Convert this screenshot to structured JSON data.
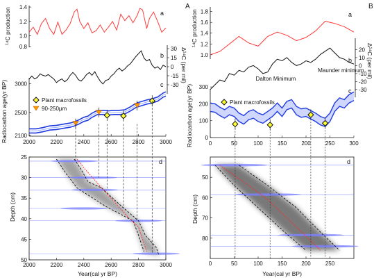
{
  "panels": {
    "A": "A",
    "B": "B"
  },
  "chart_data": [
    {
      "id": "A-top",
      "type": "line",
      "xlim": [
        2000,
        3000
      ],
      "xticks": [
        2000,
        2200,
        2400,
        2600,
        2800,
        3000
      ],
      "subplots": {
        "a": {
          "label": "a",
          "ylabel": "¹⁴C production",
          "ylim": [
            0.85,
            1.42
          ],
          "yticks": [
            "0.8",
            "1.0",
            "1.2",
            "1.4"
          ],
          "ytick_values": [
            0.8,
            1.0,
            1.2,
            1.4
          ],
          "series": [
            {
              "color": "#ff3b3b",
              "x": [
                2000,
                2030,
                2060,
                2090,
                2120,
                2150,
                2180,
                2210,
                2240,
                2270,
                2300,
                2330,
                2350,
                2370,
                2400,
                2430,
                2460,
                2490,
                2520,
                2550,
                2580,
                2610,
                2640,
                2670,
                2700,
                2730,
                2760,
                2790,
                2810,
                2830,
                2860,
                2880,
                2910,
                2940,
                2970,
                3000
              ],
              "y": [
                1.05,
                1.12,
                1.02,
                1.17,
                1.24,
                1.1,
                1.02,
                1.19,
                1.02,
                1.08,
                1.17,
                1.33,
                1.37,
                1.2,
                1.1,
                1.18,
                1.04,
                1.07,
                1.15,
                1.05,
                1.12,
                1.2,
                1.08,
                1.3,
                1.21,
                1.28,
                1.18,
                1.28,
                1.38,
                1.36,
                1.1,
                1.24,
                1.33,
                1.2,
                1.05,
                1.11
              ]
            }
          ]
        },
        "b": {
          "label": "b",
          "ylabel": "Δ¹⁴C (per mil)",
          "ylim": [
            -20,
            35
          ],
          "yticks": [
            "30",
            "15",
            "0",
            "-15",
            "-30"
          ],
          "ytick_values": [
            30,
            15,
            0,
            -15,
            -30
          ],
          "series": [
            {
              "color": "#111111",
              "x": [
                2000,
                2020,
                2040,
                2060,
                2080,
                2100,
                2120,
                2140,
                2160,
                2180,
                2200,
                2220,
                2240,
                2260,
                2280,
                2300,
                2320,
                2340,
                2360,
                2380,
                2400,
                2420,
                2440,
                2460,
                2480,
                2500,
                2520,
                2540,
                2560,
                2580,
                2600,
                2620,
                2640,
                2660,
                2680,
                2700,
                2720,
                2740,
                2760,
                2780,
                2800,
                2820,
                2840,
                2860,
                2880,
                2900,
                2920,
                2940,
                2960,
                2980,
                3000
              ],
              "y": [
                -9,
                -5,
                -9,
                -7,
                -2,
                -4,
                -5,
                -3,
                -6,
                -9,
                -14,
                -11,
                -9,
                -13,
                -10,
                -4,
                0,
                -4,
                -10,
                -12,
                -8,
                -3,
                0,
                -4,
                1,
                -6,
                -12,
                -16,
                -11,
                -10,
                -5,
                -2,
                3,
                6,
                2,
                5,
                9,
                12,
                17,
                22,
                26,
                30,
                20,
                16,
                18,
                10,
                6,
                8,
                4,
                10,
                8
              ]
            }
          ]
        }
      }
    },
    {
      "id": "A-c",
      "type": "line",
      "label": "c",
      "ylabel": "Radiocarbon age(yr BP)",
      "xlim": [
        2000,
        3000
      ],
      "ylim": [
        2100,
        3100
      ],
      "xticks": [
        2000,
        2200,
        2400,
        2600,
        2800,
        3000
      ],
      "yticks": [
        "2100",
        "2500",
        "3000"
      ],
      "ytick_values": [
        2100,
        2500,
        3000
      ],
      "curve": {
        "color": "#1f3be0",
        "x": [
          2000,
          2050,
          2100,
          2150,
          2200,
          2250,
          2300,
          2330,
          2360,
          2400,
          2430,
          2460,
          2500,
          2540,
          2580,
          2620,
          2660,
          2700,
          2740,
          2780,
          2820,
          2860,
          2900,
          2940,
          2980,
          3000
        ],
        "y": [
          2180,
          2180,
          2200,
          2230,
          2240,
          2260,
          2280,
          2300,
          2330,
          2380,
          2400,
          2450,
          2500,
          2500,
          2490,
          2500,
          2500,
          2510,
          2560,
          2620,
          2650,
          2680,
          2700,
          2730,
          2800,
          2820
        ]
      },
      "series_legend": [
        {
          "name": "Plant macrofossils",
          "marker": "diamond",
          "color": "#ffff33"
        },
        {
          "name": "90-250μm",
          "marker": "triangle-down",
          "color": "#ff9900"
        }
      ],
      "macrofossils": {
        "x": [
          2570,
          2690,
          2900
        ],
        "y": [
          2450,
          2440,
          2700
        ]
      },
      "fine_fraction": {
        "x": [
          2340,
          2510,
          2790
        ],
        "y": [
          2310,
          2500,
          2620
        ]
      }
    },
    {
      "id": "A-d",
      "type": "scatter",
      "label": "d",
      "xlabel": "Year(cal yr BP)",
      "ylabel": "Depth (cm)",
      "xlim": [
        2000,
        3000
      ],
      "ylim": [
        25,
        50
      ],
      "xticks": [
        "2000",
        "2200",
        "2400",
        "2600",
        "2800",
        "3000"
      ],
      "xtick_values": [
        2000,
        2200,
        2400,
        2600,
        2800,
        3000
      ],
      "yticks": [
        "25",
        "30",
        "35",
        "40",
        "45",
        "50"
      ],
      "ytick_values": [
        25,
        30,
        35,
        40,
        45,
        50
      ],
      "median": {
        "x": [
          2350,
          2410,
          2490,
          2570,
          2640,
          2720,
          2800,
          2830,
          2860
        ],
        "y": [
          25.5,
          28,
          31,
          34,
          36.5,
          39.5,
          42,
          45,
          48
        ]
      },
      "envelope_left": {
        "x": [
          2200,
          2270,
          2350,
          2420,
          2560,
          2760,
          2800,
          2840
        ],
        "y": [
          25.5,
          29,
          32.5,
          34,
          37,
          40.5,
          44,
          48
        ]
      },
      "envelope_right": {
        "x": [
          2330,
          2380,
          2430,
          2530,
          2660,
          2800,
          2850,
          2930,
          2950
        ],
        "y": [
          25.5,
          28,
          31,
          32.5,
          36.5,
          40.5,
          44,
          47,
          49
        ]
      },
      "date_bands": [
        {
          "depth": 26,
          "x": 2330
        },
        {
          "depth": 30,
          "x": 2470
        },
        {
          "depth": 33,
          "x": 2480
        },
        {
          "depth": 37.5,
          "x": 2400
        },
        {
          "depth": 40.5,
          "x": 2800
        },
        {
          "depth": 48.5,
          "x": 2930
        }
      ]
    },
    {
      "id": "B-top",
      "type": "line",
      "xlim": [
        0,
        300
      ],
      "xticks": [
        0,
        50,
        100,
        150,
        200,
        250,
        300
      ],
      "subplots": {
        "a": {
          "label": "a",
          "ylabel": "¹⁴C production",
          "ylim": [
            0.92,
            1.86
          ],
          "yticks": [
            "1.0",
            "1.2",
            "1.4",
            "1.6",
            "1.8"
          ],
          "ytick_values": [
            1.0,
            1.2,
            1.4,
            1.6,
            1.8
          ],
          "series": [
            {
              "color": "#ff3b3b",
              "x": [
                0,
                20,
                40,
                60,
                80,
                100,
                120,
                140,
                160,
                180,
                200,
                220,
                240,
                260,
                280,
                300
              ],
              "y": [
                1.0,
                1.06,
                1.2,
                1.34,
                1.22,
                1.16,
                1.34,
                1.42,
                1.36,
                1.26,
                1.32,
                1.44,
                1.62,
                1.58,
                1.52,
                1.42
              ]
            }
          ]
        },
        "b": {
          "label": "b",
          "ylabel": "Δ¹⁴C (per mil)",
          "ylim": [
            -38,
            30
          ],
          "yticks": [
            "20",
            "10",
            "0",
            "-10",
            "-20",
            "-30"
          ],
          "ytick_values": [
            20,
            10,
            0,
            -10,
            -20,
            -30
          ],
          "annotations": [
            "Maunder minimum",
            "Dalton Minimum"
          ],
          "series": [
            {
              "color": "#111111",
              "x": [
                0,
                10,
                20,
                30,
                40,
                50,
                60,
                70,
                80,
                90,
                100,
                110,
                120,
                130,
                140,
                150,
                160,
                170,
                180,
                190,
                200,
                210,
                220,
                230,
                240,
                250,
                260,
                270,
                280,
                290,
                300
              ],
              "y": [
                -30,
                -24,
                -18,
                -20,
                -10,
                -12,
                -6,
                -8,
                -2,
                0,
                -4,
                -10,
                -8,
                2,
                8,
                6,
                10,
                4,
                0,
                2,
                6,
                4,
                8,
                14,
                18,
                22,
                16,
                10,
                8,
                4,
                2
              ]
            }
          ]
        }
      }
    },
    {
      "id": "B-c",
      "type": "line",
      "label": "c",
      "ylabel": "Radiocarbon age(yr BP)",
      "xlim": [
        0,
        300
      ],
      "ylim": [
        0,
        280
      ],
      "xticks": [
        "0",
        "50",
        "100",
        "150",
        "200",
        "250",
        "300"
      ],
      "xtick_values": [
        0,
        50,
        100,
        150,
        200,
        250,
        300
      ],
      "yticks": [
        "0",
        "100",
        "200",
        "300"
      ],
      "ytick_values": [
        0,
        100,
        200,
        300
      ],
      "band_color": "#1f3be0",
      "curve": {
        "x": [
          0,
          10,
          20,
          30,
          40,
          50,
          60,
          70,
          80,
          90,
          100,
          110,
          120,
          130,
          140,
          150,
          160,
          170,
          180,
          190,
          200,
          210,
          220,
          230,
          240,
          250,
          260,
          270,
          280,
          290,
          300
        ],
        "y": [
          180,
          175,
          155,
          140,
          160,
          150,
          120,
          105,
          130,
          140,
          120,
          110,
          130,
          150,
          180,
          150,
          190,
          200,
          160,
          145,
          150,
          135,
          120,
          100,
          90,
          120,
          180,
          210,
          200,
          230,
          245
        ]
      },
      "series_legend": [
        {
          "name": "Plant macrofossils",
          "marker": "diamond",
          "color": "#ffff33"
        }
      ],
      "macrofossils": {
        "x": [
          52,
          125,
          210,
          240
        ],
        "y": [
          80,
          75,
          135,
          85
        ]
      }
    },
    {
      "id": "B-d",
      "type": "scatter",
      "label": "d",
      "xlabel": "Year(cal yr BP)",
      "ylabel": "Depth (cm)",
      "xlim": [
        0,
        300
      ],
      "ylim": [
        40,
        90
      ],
      "xticks": [
        "0",
        "50",
        "100",
        "150",
        "200",
        "250"
      ],
      "xtick_values": [
        0,
        50,
        100,
        150,
        200,
        250
      ],
      "yticks": [
        "50",
        "60",
        "70",
        "80"
      ],
      "ytick_values": [
        50,
        60,
        70,
        80
      ],
      "median": {
        "x": [
          20,
          80,
          120,
          160,
          200,
          230
        ],
        "y": [
          44,
          54,
          61,
          70,
          79,
          86
        ]
      },
      "envelope_left": {
        "x": [
          10,
          50,
          100,
          160,
          200
        ],
        "y": [
          44,
          54,
          65,
          78,
          86
        ]
      },
      "envelope_right": {
        "x": [
          60,
          120,
          180,
          230,
          270
        ],
        "y": [
          44,
          54,
          65,
          77,
          86
        ]
      },
      "date_bands": [
        {
          "depth": 44,
          "x": 50
        },
        {
          "depth": 58.5,
          "x": 120
        },
        {
          "depth": 78.5,
          "x": 210
        },
        {
          "depth": 84,
          "x": 240
        }
      ]
    }
  ]
}
